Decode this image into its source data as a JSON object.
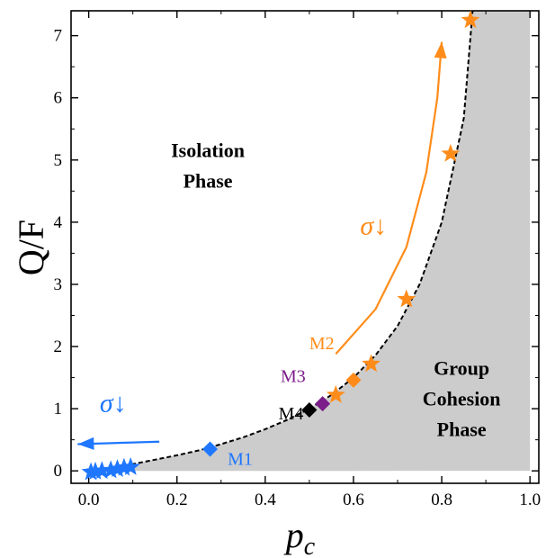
{
  "chart_data": {
    "type": "scatter",
    "xlabel_main": "p",
    "xlabel_sub": "c",
    "ylabel": "Q/F",
    "xlim": [
      -0.04,
      1.02
    ],
    "ylim": [
      -0.2,
      7.4
    ],
    "x_ticks": [
      0.0,
      0.2,
      0.4,
      0.6,
      0.8,
      1.0
    ],
    "x_tick_labels": [
      "0.0",
      "0.2",
      "0.4",
      "0.6",
      "0.8",
      "1.0"
    ],
    "y_ticks": [
      0,
      1,
      2,
      3,
      4,
      5,
      6,
      7
    ],
    "y_tick_labels": [
      "0",
      "1",
      "2",
      "3",
      "4",
      "5",
      "6",
      "7"
    ],
    "grid": false,
    "boundary_curve": {
      "style": "dashed",
      "x": [
        0.0,
        0.05,
        0.1,
        0.15,
        0.2,
        0.25,
        0.3,
        0.35,
        0.4,
        0.45,
        0.5,
        0.55,
        0.6,
        0.65,
        0.7,
        0.75,
        0.8,
        0.85,
        0.87
      ],
      "y": [
        0.0,
        0.05,
        0.11,
        0.18,
        0.25,
        0.33,
        0.43,
        0.54,
        0.67,
        0.82,
        1.0,
        1.22,
        1.5,
        1.86,
        2.33,
        3.0,
        4.0,
        5.67,
        7.4
      ]
    },
    "regions": [
      {
        "label_line1": "Isolation",
        "label_line2": "Phase",
        "label_line3": "",
        "x": 0.27,
        "y": 4.8
      },
      {
        "label_line1": "Group",
        "label_line2": "Cohesion",
        "label_line3": "Phase",
        "x": 0.845,
        "y": 1.05
      }
    ],
    "series": [
      {
        "marker": "star",
        "color": "#1f77ff",
        "points": [
          [
            0.005,
            -0.02
          ],
          [
            0.015,
            -0.01
          ],
          [
            0.03,
            0.0
          ],
          [
            0.05,
            0.01
          ],
          [
            0.065,
            0.03
          ],
          [
            0.08,
            0.05
          ],
          [
            0.095,
            0.06
          ]
        ]
      },
      {
        "marker": "star",
        "color": "#ff8c1a",
        "points": [
          [
            0.56,
            1.22
          ],
          [
            0.64,
            1.72
          ],
          [
            0.72,
            2.76
          ],
          [
            0.82,
            5.1
          ],
          [
            0.865,
            7.25
          ]
        ]
      }
    ],
    "labeled_points": [
      {
        "label": "M1",
        "x": 0.275,
        "y": 0.35,
        "color": "#1f77ff",
        "label_color": "#1f77ff",
        "label_dx": 0.04,
        "label_dy": -0.25
      },
      {
        "label": "M2",
        "x": 0.6,
        "y": 1.46,
        "color": "#ff8c1a",
        "label_color": "#ff8c1a",
        "label_dx": -0.1,
        "label_dy": 0.5
      },
      {
        "label": "M3",
        "x": 0.53,
        "y": 1.08,
        "color": "#7b1e8a",
        "label_color": "#7b1e8a",
        "label_dx": -0.095,
        "label_dy": 0.35
      },
      {
        "label": "M4",
        "x": 0.5,
        "y": 0.98,
        "color": "#000000",
        "label_color": "#000000",
        "label_dx": -0.07,
        "label_dy": -0.15
      }
    ],
    "arrows": [
      {
        "color": "#ff8c1a",
        "label": "σ↓",
        "path": [
          [
            0.56,
            1.88
          ],
          [
            0.65,
            2.6
          ],
          [
            0.72,
            3.6
          ],
          [
            0.765,
            4.8
          ],
          [
            0.79,
            6.0
          ],
          [
            0.8,
            6.9
          ]
        ],
        "label_x": 0.615,
        "label_y": 3.8
      },
      {
        "color": "#1f77ff",
        "label": "σ↓",
        "path": [
          [
            0.16,
            0.47
          ],
          [
            -0.025,
            0.43
          ]
        ],
        "label_x": 0.025,
        "label_y": 0.95
      }
    ],
    "colors": {
      "shade": "#cccccc",
      "orange": "#ff8c1a",
      "blue": "#1f77ff",
      "purple": "#7b1e8a",
      "black": "#000000"
    }
  }
}
